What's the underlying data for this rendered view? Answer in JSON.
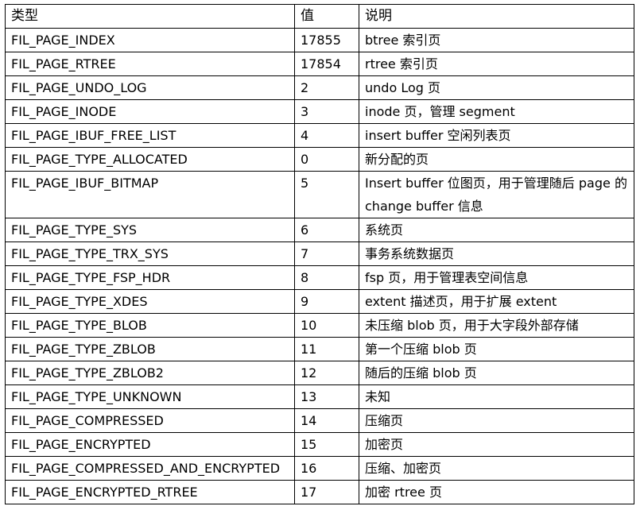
{
  "table": {
    "headers": [
      "类型",
      "值",
      "说明"
    ],
    "rows": [
      [
        "FIL_PAGE_INDEX",
        "17855",
        "btree 索引页"
      ],
      [
        "FIL_PAGE_RTREE",
        "17854",
        "rtree 索引页"
      ],
      [
        "FIL_PAGE_UNDO_LOG",
        "2",
        "undo Log 页"
      ],
      [
        "FIL_PAGE_INODE",
        "3",
        "inode 页，管理 segment"
      ],
      [
        "FIL_PAGE_IBUF_FREE_LIST",
        "4",
        "insert buffer 空闲列表页"
      ],
      [
        "FIL_PAGE_TYPE_ALLOCATED",
        "0",
        "新分配的页"
      ],
      [
        "FIL_PAGE_IBUF_BITMAP",
        "5",
        "Insert buffer 位图页，用于管理随后 page 的 change buffer 信息"
      ],
      [
        "FIL_PAGE_TYPE_SYS",
        "6",
        "系统页"
      ],
      [
        "FIL_PAGE_TYPE_TRX_SYS",
        "7",
        "事务系统数据页"
      ],
      [
        "FIL_PAGE_TYPE_FSP_HDR",
        "8",
        "fsp 页，用于管理表空间信息"
      ],
      [
        "FIL_PAGE_TYPE_XDES",
        "9",
        "extent 描述页，用于扩展 extent"
      ],
      [
        "FIL_PAGE_TYPE_BLOB",
        "10",
        "未压缩 blob 页，用于大字段外部存储"
      ],
      [
        "FIL_PAGE_TYPE_ZBLOB",
        "11",
        "第一个压缩 blob 页"
      ],
      [
        "FIL_PAGE_TYPE_ZBLOB2",
        "12",
        "随后的压缩 blob 页"
      ],
      [
        "FIL_PAGE_TYPE_UNKNOWN",
        "13",
        "未知"
      ],
      [
        "FIL_PAGE_COMPRESSED",
        "14",
        "压缩页"
      ],
      [
        "FIL_PAGE_ENCRYPTED",
        "15",
        "加密页"
      ],
      [
        "FIL_PAGE_COMPRESSED_AND_ENCRYPTED",
        "16",
        "压缩、加密页"
      ],
      [
        "FIL_PAGE_ENCRYPTED_RTREE",
        "17",
        "加密 rtree 页"
      ]
    ]
  }
}
